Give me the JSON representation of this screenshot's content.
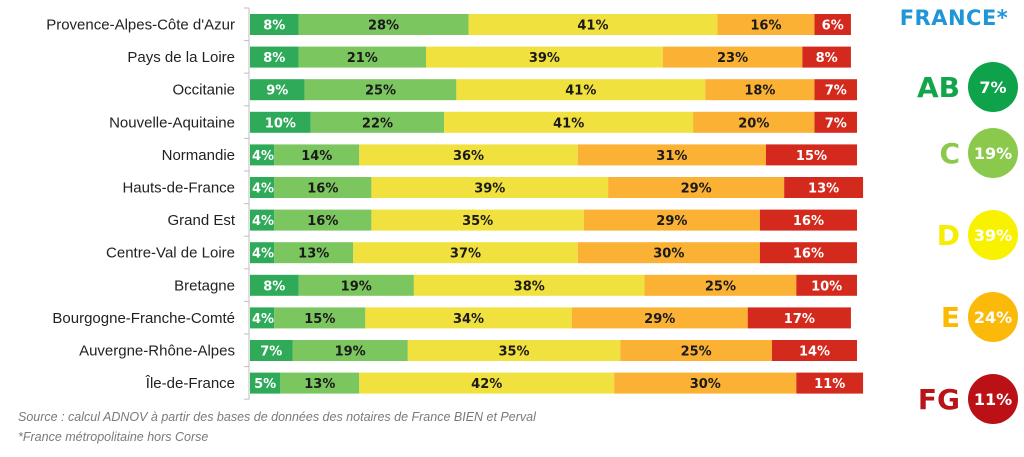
{
  "chart_data": {
    "type": "bar",
    "orientation": "horizontal",
    "stacked": true,
    "percent_stacked": true,
    "title": "",
    "xlabel": "",
    "ylabel": "",
    "xlim": [
      0,
      100
    ],
    "grid": false,
    "categories": [
      "Provence-Alpes-Côte d'Azur",
      "Pays de la Loire",
      "Occitanie",
      "Nouvelle-Aquitaine",
      "Normandie",
      "Hauts-de-France",
      "Grand Est",
      "Centre-Val de Loire",
      "Bretagne",
      "Bourgogne-Franche-Comté",
      "Auvergne-Rhône-Alpes",
      "Île-de-France"
    ],
    "series": [
      {
        "name": "AB",
        "color": "#2eaa58",
        "label_color": "#ffffff",
        "values": [
          8,
          8,
          9,
          10,
          4,
          4,
          4,
          4,
          8,
          4,
          7,
          5
        ]
      },
      {
        "name": "C",
        "color": "#7cc660",
        "label_color": "#1a1a1a",
        "values": [
          28,
          21,
          25,
          22,
          14,
          16,
          16,
          13,
          19,
          15,
          19,
          13
        ]
      },
      {
        "name": "D",
        "color": "#f1e13e",
        "label_color": "#1a1a1a",
        "values": [
          41,
          39,
          41,
          41,
          36,
          39,
          35,
          37,
          38,
          34,
          35,
          42
        ]
      },
      {
        "name": "E",
        "color": "#fab134",
        "label_color": "#1a1a1a",
        "values": [
          16,
          23,
          18,
          20,
          31,
          29,
          29,
          30,
          25,
          29,
          25,
          30
        ]
      },
      {
        "name": "FG",
        "color": "#d42a1e",
        "label_color": "#ffffff",
        "values": [
          6,
          8,
          7,
          7,
          15,
          13,
          16,
          16,
          10,
          17,
          14,
          11
        ]
      }
    ],
    "value_suffix": "%",
    "legend": {
      "placement": "right",
      "title": "FRANCE*",
      "items": [
        {
          "letter": "AB",
          "value": "7%",
          "letter_color": "#13a54a",
          "circle_color": "#0ea24b"
        },
        {
          "letter": "C",
          "value": "19%",
          "letter_color": "#8cc84b",
          "circle_color": "#8bc94c"
        },
        {
          "letter": "D",
          "value": "39%",
          "letter_color": "#f5ee00",
          "circle_color": "#f8f200"
        },
        {
          "letter": "E",
          "value": "24%",
          "letter_color": "#fbba00",
          "circle_color": "#fbb90a"
        },
        {
          "letter": "FG",
          "value": "11%",
          "letter_color": "#b8141a",
          "circle_color": "#bb1015"
        }
      ]
    }
  },
  "footer": {
    "source": "Source : calcul ADNOV à partir des bases de données des notaires de France BIEN et Perval",
    "note": "*France métropolitaine hors Corse"
  }
}
